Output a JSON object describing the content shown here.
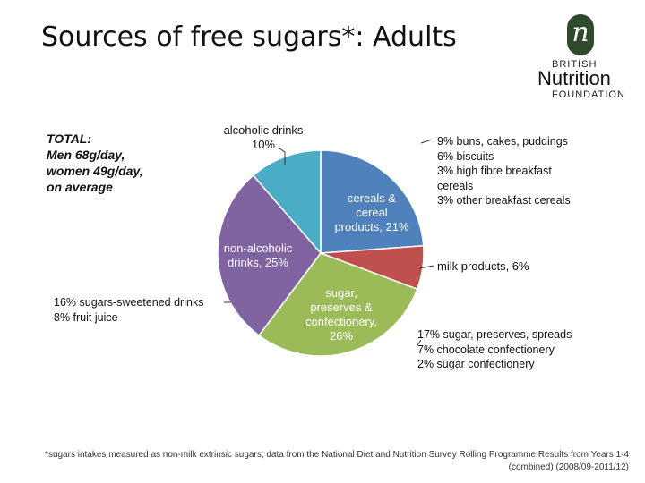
{
  "slide": {
    "title": "Sources of free sugars*: Adults",
    "footnote": "*sugars intakes measured as non-milk extrinsic sugars; data from the National Diet and Nutrition Survey Rolling Programme Results from Years 1-4 (combined) (2008/09-2011/12)"
  },
  "logo": {
    "icon": "n-letter-logo-icon",
    "mark": "n",
    "line1": "BRITISH",
    "line2": "Nutrition",
    "line3": "FOUNDATION"
  },
  "total_note": "TOTAL:\nMen 68g/day,\nwomen 49g/day,\non average",
  "callouts": {
    "cereals": "9% buns, cakes, puddings\n6% biscuits\n3% high fibre breakfast\n    cereals\n3% other breakfast cereals",
    "sugar": "17% sugar, preserves, spreads\n7% chocolate confectionery\n2% sugar confectionery",
    "soft_drinks": "16% sugars-sweetened drinks\n8% fruit juice"
  },
  "chart_data": {
    "type": "pie",
    "title": "Sources of free sugars*: Adults",
    "slices": [
      {
        "label": [
          "cereals &",
          "cereal",
          "products, 21%"
        ],
        "value": 21,
        "color": "#4f81bd",
        "label_color": "#ffffff"
      },
      {
        "label": [
          "milk products, 6%"
        ],
        "value": 6,
        "color": "#c0504d",
        "label_color": "#111111"
      },
      {
        "label": [
          "sugar,",
          "preserves &",
          "confectionery,",
          "26%"
        ],
        "value": 26,
        "color": "#9bbb59",
        "label_color": "#ffffff"
      },
      {
        "label": [
          "non-alcoholic",
          "drinks, 25%"
        ],
        "value": 25,
        "color": "#8064a2",
        "label_color": "#ffffff"
      },
      {
        "label": [
          "alcoholic drinks",
          "10%"
        ],
        "value": 10,
        "color": "#4bacc6",
        "label_color": "#111111"
      }
    ]
  }
}
